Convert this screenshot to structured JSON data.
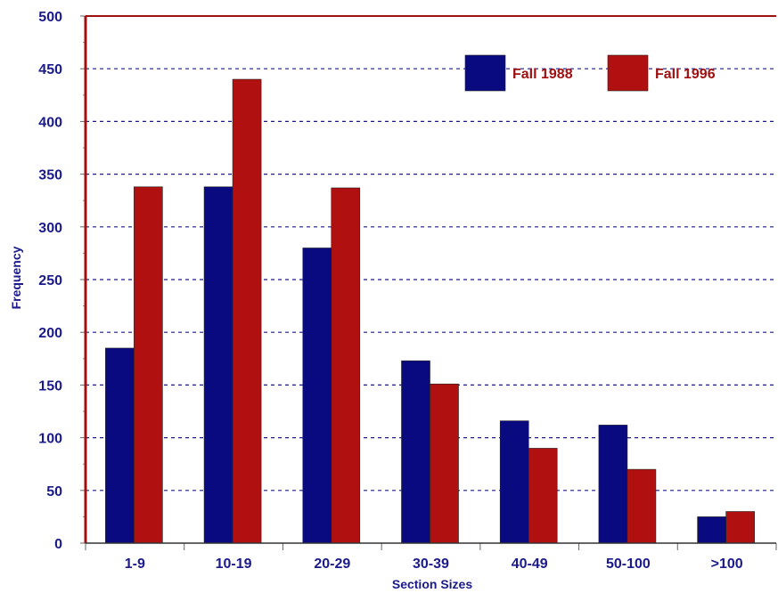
{
  "chart_data": {
    "type": "bar",
    "xlabel": "Section Sizes",
    "ylabel": "Frequency",
    "ylim": [
      0,
      500
    ],
    "yticks": [
      0,
      50,
      100,
      150,
      200,
      250,
      300,
      350,
      400,
      450,
      500
    ],
    "categories": [
      "1-9",
      "10-19",
      "20-29",
      "30-39",
      "40-49",
      "50-100",
      ">100"
    ],
    "series": [
      {
        "name": "Fall 1988",
        "color": "#0a0a80",
        "values": [
          185,
          338,
          280,
          173,
          116,
          112,
          25
        ]
      },
      {
        "name": "Fall 1996",
        "color": "#b01010",
        "values": [
          338,
          440,
          337,
          151,
          90,
          70,
          30
        ]
      }
    ],
    "grid": true,
    "legend_position": "top-right",
    "axis_color": "#a01010",
    "grid_color": "#1a1a8c",
    "text_color": "#1a1a8c"
  }
}
